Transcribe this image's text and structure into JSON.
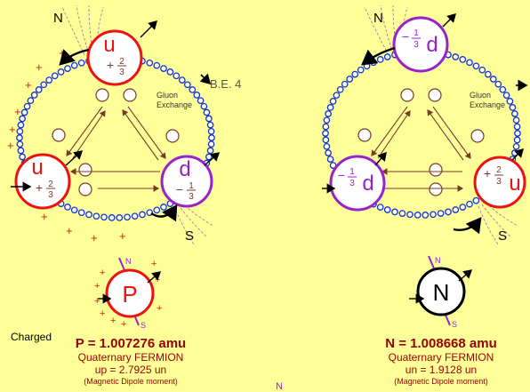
{
  "proton_diagram": {
    "north": "N",
    "south": "S",
    "be": "B.E. 4",
    "gluon_line1": "Gluon",
    "gluon_line2": "Exchange",
    "quark_top": {
      "letter": "u",
      "sign": "+",
      "num": "2",
      "den": "3"
    },
    "quark_left": {
      "letter": "u",
      "sign": "+",
      "num": "2",
      "den": "3"
    },
    "quark_right": {
      "letter": "d",
      "sign": "−",
      "num": "1",
      "den": "3"
    },
    "plus": "+"
  },
  "neutron_diagram": {
    "north": "N",
    "south": "S",
    "gluon_line1": "Gluon",
    "gluon_line2": "Exchange",
    "quark_top": {
      "letter": "d",
      "sign": "−",
      "num": "1",
      "den": "3"
    },
    "quark_left": {
      "letter": "d",
      "sign": "−",
      "num": "1",
      "den": "3"
    },
    "quark_right": {
      "letter": "u",
      "sign": "+",
      "num": "2",
      "den": "3"
    }
  },
  "proton": {
    "symbol": "P",
    "pole_n": "N",
    "pole_s": "S",
    "charged_label": "Charged",
    "mass": "P = 1.007276 amu",
    "type": "Quaternary FERMION",
    "moment": "up = 2.7925 un",
    "moment_note": "(Magnetic Dipole moment)"
  },
  "neutron": {
    "symbol": "N",
    "pole_n": "N",
    "pole_s": "S",
    "mass": "N = 1.008668 amu",
    "type": "Quaternary FERMION",
    "moment": "un = 1.9128 un",
    "moment_note": "(Magnetic Dipole moment)"
  },
  "footer_mark": "N",
  "colors": {
    "background": "#ffff99",
    "up_quark": "#ee1111",
    "down_quark": "#9922cc",
    "gluon_ring": "#1133cc",
    "text_dark_red": "#990000",
    "arrow": "#7a3a2a",
    "field_lines": "#aa66aa"
  }
}
